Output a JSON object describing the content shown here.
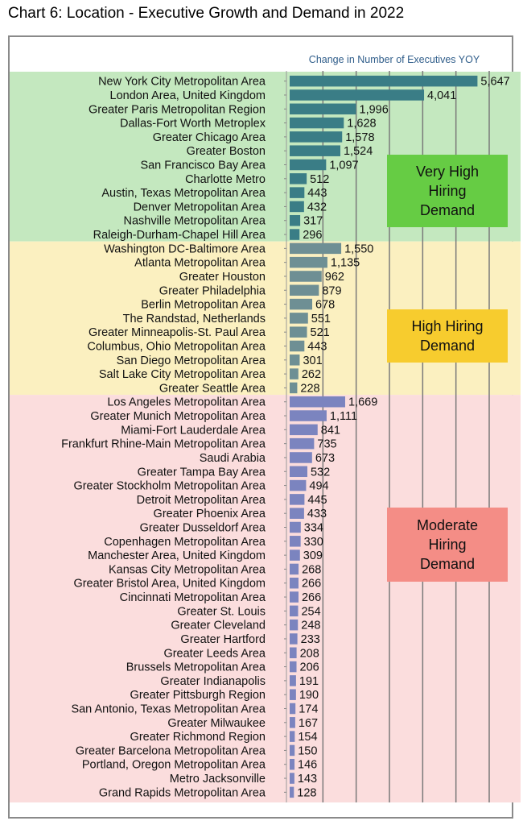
{
  "page": {
    "title": "Chart 6: Location - Executive Growth and Demand in 2022"
  },
  "chart_data": {
    "type": "bar",
    "orientation": "horizontal",
    "title": "Chart 6: Location - Executive Growth and Demand in 2022",
    "subtitle": "Change in Number of Executives YOY",
    "xlim": [
      0,
      6000
    ],
    "grid": true,
    "categories": [
      "New York City Metropolitan Area",
      "London Area, United Kingdom",
      "Greater Paris Metropolitan Region",
      "Dallas-Fort Worth Metroplex",
      "Greater Chicago Area",
      "Greater Boston",
      "San Francisco Bay Area",
      "Charlotte Metro",
      "Austin, Texas Metropolitan Area",
      "Denver Metropolitan Area",
      "Nashville Metropolitan Area",
      "Raleigh-Durham-Chapel Hill Area",
      "Washington DC-Baltimore Area",
      "Atlanta Metropolitan Area",
      "Greater Houston",
      "Greater Philadelphia",
      "Berlin Metropolitan Area",
      "The Randstad, Netherlands",
      "Greater Minneapolis-St. Paul Area",
      "Columbus, Ohio Metropolitan Area",
      "San Diego Metropolitan Area",
      "Salt Lake City Metropolitan Area",
      "Greater Seattle Area",
      "Los Angeles Metropolitan Area",
      "Greater Munich Metropolitan Area",
      "Miami-Fort Lauderdale Area",
      "Frankfurt Rhine-Main Metropolitan Area",
      "Saudi Arabia",
      "Greater Tampa Bay Area",
      "Greater Stockholm Metropolitan Area",
      "Detroit Metropolitan Area",
      "Greater Phoenix Area",
      "Greater Dusseldorf Area",
      "Copenhagen Metropolitan Area",
      "Manchester Area, United Kingdom",
      "Kansas City Metropolitan Area",
      "Greater Bristol Area, United Kingdom",
      "Cincinnati Metropolitan Area",
      "Greater St. Louis",
      "Greater Cleveland",
      "Greater Hartford",
      "Greater Leeds Area",
      "Brussels Metropolitan Area",
      "Greater Indianapolis",
      "Greater Pittsburgh Region",
      "San Antonio, Texas Metropolitan Area",
      "Greater Milwaukee",
      "Greater Richmond Region",
      "Greater Barcelona Metropolitan Area",
      "Portland, Oregon Metropolitan Area",
      "Metro Jacksonville",
      "Grand Rapids Metropolitan Area"
    ],
    "values": [
      5647,
      4041,
      1996,
      1628,
      1578,
      1524,
      1097,
      512,
      443,
      432,
      317,
      296,
      1550,
      1135,
      962,
      879,
      678,
      551,
      521,
      443,
      301,
      262,
      228,
      1669,
      1111,
      841,
      735,
      673,
      532,
      494,
      445,
      433,
      334,
      330,
      309,
      268,
      266,
      266,
      254,
      248,
      233,
      208,
      206,
      191,
      190,
      174,
      167,
      154,
      150,
      146,
      143,
      128
    ],
    "value_labels": [
      "5,647",
      "4,041",
      "1,996",
      "1,628",
      "1,578",
      "1,524",
      "1,097",
      "512",
      "443",
      "432",
      "317",
      "296",
      "1,550",
      "1,135",
      "962",
      "879",
      "678",
      "551",
      "521",
      "443",
      "301",
      "262",
      "228",
      "1,669",
      "1,111",
      "841",
      "735",
      "673",
      "532",
      "494",
      "445",
      "433",
      "334",
      "330",
      "309",
      "268",
      "266",
      "266",
      "254",
      "248",
      "233",
      "208",
      "206",
      "191",
      "190",
      "174",
      "167",
      "154",
      "150",
      "146",
      "143",
      "128"
    ],
    "groups": [
      {
        "label_lines": [
          "Very High",
          "Hiring",
          "Demand"
        ],
        "start": 0,
        "end": 11,
        "band_color": "#c4e8bf",
        "label_color": "#66cc44",
        "bar_color": "#3a7d86"
      },
      {
        "label_lines": [
          "High Hiring",
          "Demand"
        ],
        "start": 12,
        "end": 22,
        "band_color": "#fbf0c0",
        "label_color": "#f7cc2e",
        "bar_color": "#6e8f94"
      },
      {
        "label_lines": [
          "Moderate",
          "Hiring",
          "Demand"
        ],
        "start": 23,
        "end": 51,
        "band_color": "#fbdddd",
        "label_color": "#f48d86",
        "bar_color": "#7b84bf"
      }
    ]
  }
}
